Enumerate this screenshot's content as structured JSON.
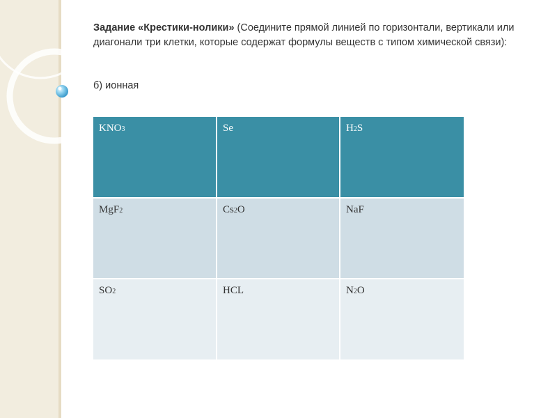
{
  "task": {
    "title": "Задание «Крестики-нолики»",
    "instruction": " (Соедините прямой линией по горизонтали, вертикали или диагонали три клетки, которые содержат формулы веществ с типом химической связи):",
    "variant": "б) ионная"
  },
  "grid": {
    "rows": [
      {
        "cells": [
          {
            "main": "KNO",
            "sub": "3",
            "tail": ""
          },
          {
            "main": "Se",
            "sub": "",
            "tail": ""
          },
          {
            "main": "H",
            "sub": "2",
            "tail": "S"
          }
        ]
      },
      {
        "cells": [
          {
            "main": "MgF",
            "sub": "2",
            "tail": ""
          },
          {
            "main": "Cs",
            "sub": "2",
            "tail": "O"
          },
          {
            "main": "NaF",
            "sub": "",
            "tail": ""
          }
        ]
      },
      {
        "cells": [
          {
            "main": "SO",
            "sub": "2",
            "tail": ""
          },
          {
            "main": "HCL",
            "sub": "",
            "tail": ""
          },
          {
            "main": "N",
            "sub": "2",
            "tail": "O"
          }
        ]
      }
    ]
  },
  "colors": {
    "header_row": "#3a8fa5",
    "row_dark": "#cfdde5",
    "row_light": "#e7eef2",
    "side_band": "#f2eddf",
    "bubble": "#7cc6e6"
  }
}
